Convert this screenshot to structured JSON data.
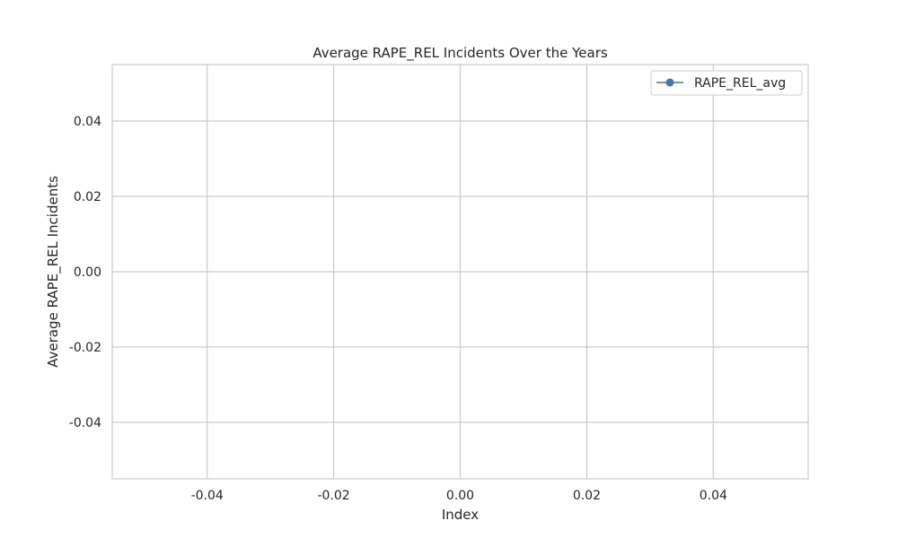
{
  "chart_data": {
    "type": "line",
    "title": "Average RAPE_REL Incidents Over the Years",
    "xlabel": "Index",
    "ylabel": "Average RAPE_REL Incidents",
    "xlim": [
      -0.055,
      0.055
    ],
    "ylim": [
      -0.055,
      0.055
    ],
    "x_ticks": [
      -0.04,
      -0.02,
      0.0,
      0.02,
      0.04
    ],
    "x_tick_labels": [
      "-0.04",
      "-0.02",
      "0.00",
      "0.02",
      "0.04"
    ],
    "y_ticks": [
      0.04,
      0.02,
      0.0,
      -0.02,
      -0.04
    ],
    "y_tick_labels": [
      "0.04",
      "0.02",
      "0.00",
      "-0.02",
      "-0.04"
    ],
    "grid": true,
    "legend_position": "top-right",
    "series": [
      {
        "name": "RAPE_REL_avg",
        "x": [],
        "values": [],
        "color": "#4c72b0",
        "marker": "circle"
      }
    ]
  }
}
